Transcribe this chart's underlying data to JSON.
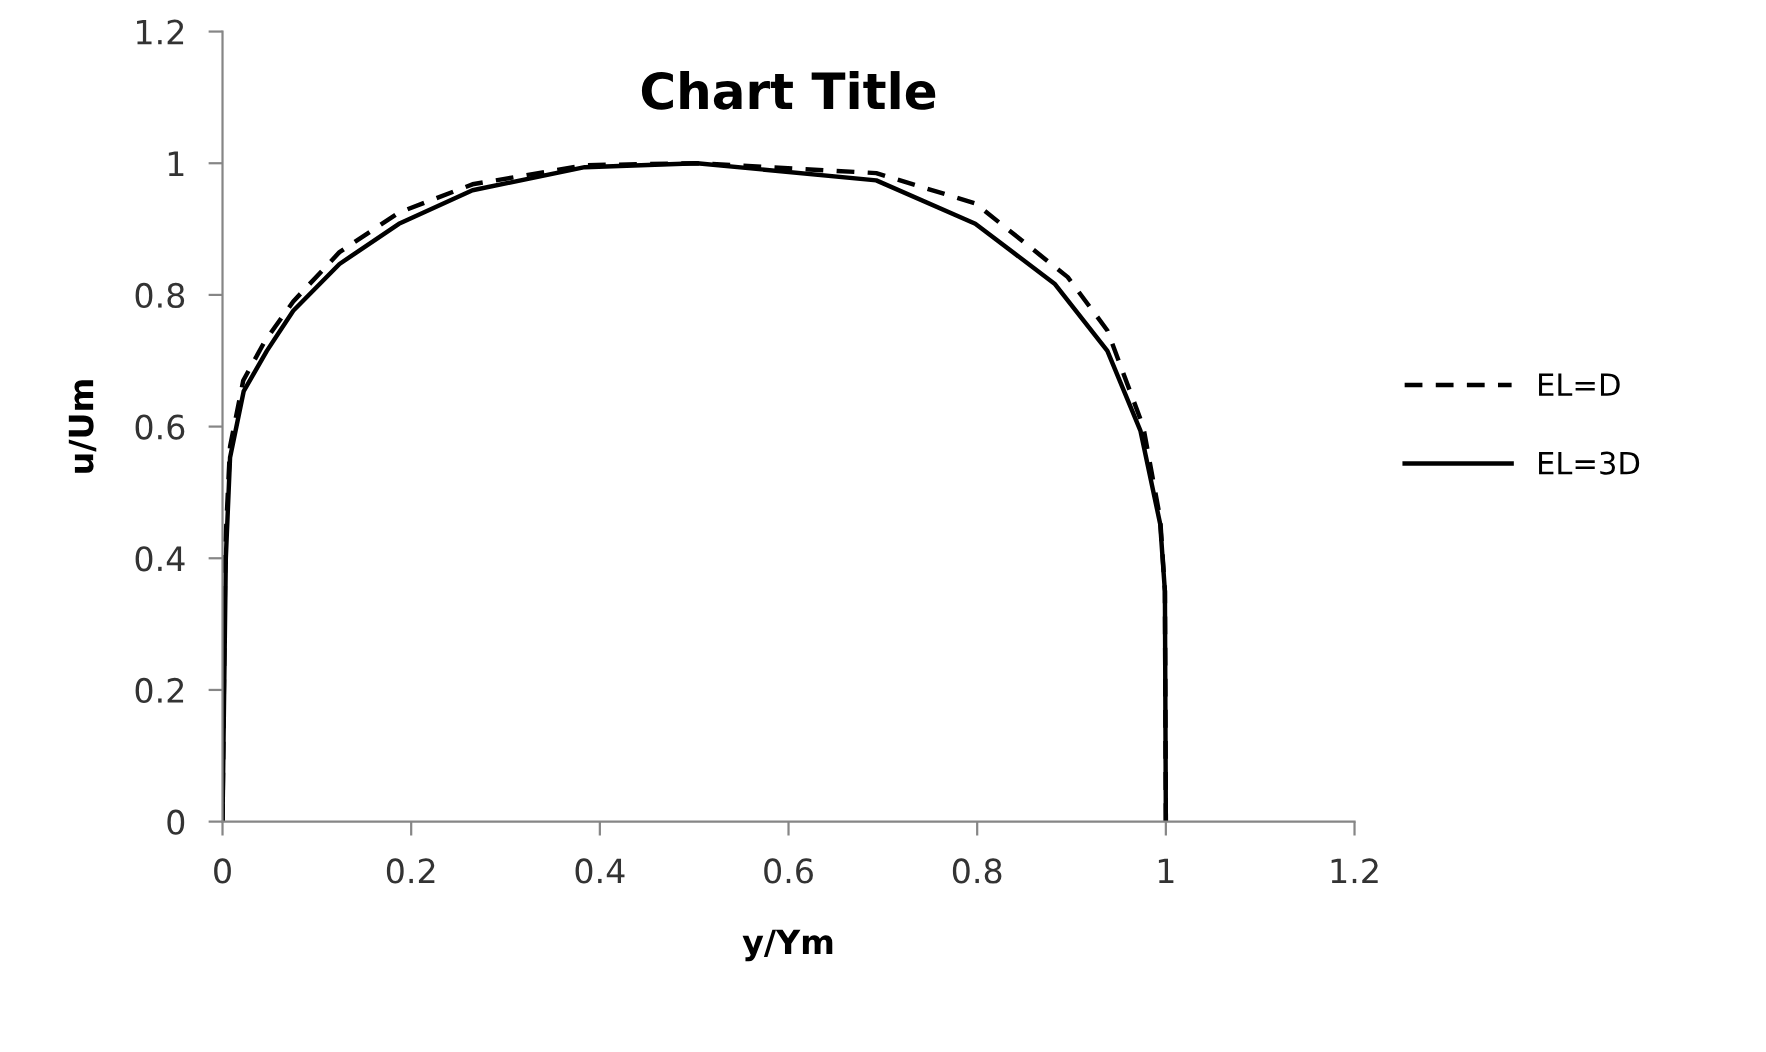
{
  "chart_data": {
    "type": "line",
    "title": "Chart Title",
    "xlabel": "y/Ym",
    "ylabel": "u/Um",
    "xlim": [
      0,
      1.2
    ],
    "ylim": [
      0,
      1.2
    ],
    "xticks": [
      0,
      0.2,
      0.4,
      0.6,
      0.8,
      1,
      1.2
    ],
    "yticks": [
      0,
      0.2,
      0.4,
      0.6,
      0.8,
      1,
      1.2
    ],
    "grid": false,
    "legend": "right",
    "marker": "none",
    "series": [
      {
        "name": "EL=D",
        "color": "#000000",
        "line_style": "dashed",
        "x": [
          0,
          0.003,
          0.008,
          0.022,
          0.045,
          0.075,
          0.124,
          0.187,
          0.265,
          0.384,
          0.503,
          0.693,
          0.798,
          0.896,
          0.938,
          0.976,
          0.994,
          0.999,
          1.0
        ],
        "values": [
          0,
          0.42,
          0.57,
          0.67,
          0.73,
          0.79,
          0.865,
          0.925,
          0.968,
          0.997,
          1.0,
          0.985,
          0.939,
          0.827,
          0.746,
          0.6,
          0.46,
          0.35,
          0
        ]
      },
      {
        "name": "EL=3D",
        "color": "#000000",
        "line_style": "solid",
        "x": [
          0,
          0.0035,
          0.008,
          0.0225,
          0.047,
          0.075,
          0.124,
          0.187,
          0.265,
          0.384,
          0.503,
          0.693,
          0.798,
          0.882,
          0.938,
          0.973,
          0.994,
          0.999,
          1.0
        ],
        "values": [
          0,
          0.4,
          0.553,
          0.654,
          0.715,
          0.776,
          0.847,
          0.908,
          0.959,
          0.994,
          1.0,
          0.974,
          0.908,
          0.817,
          0.715,
          0.594,
          0.452,
          0.35,
          0
        ]
      }
    ]
  }
}
